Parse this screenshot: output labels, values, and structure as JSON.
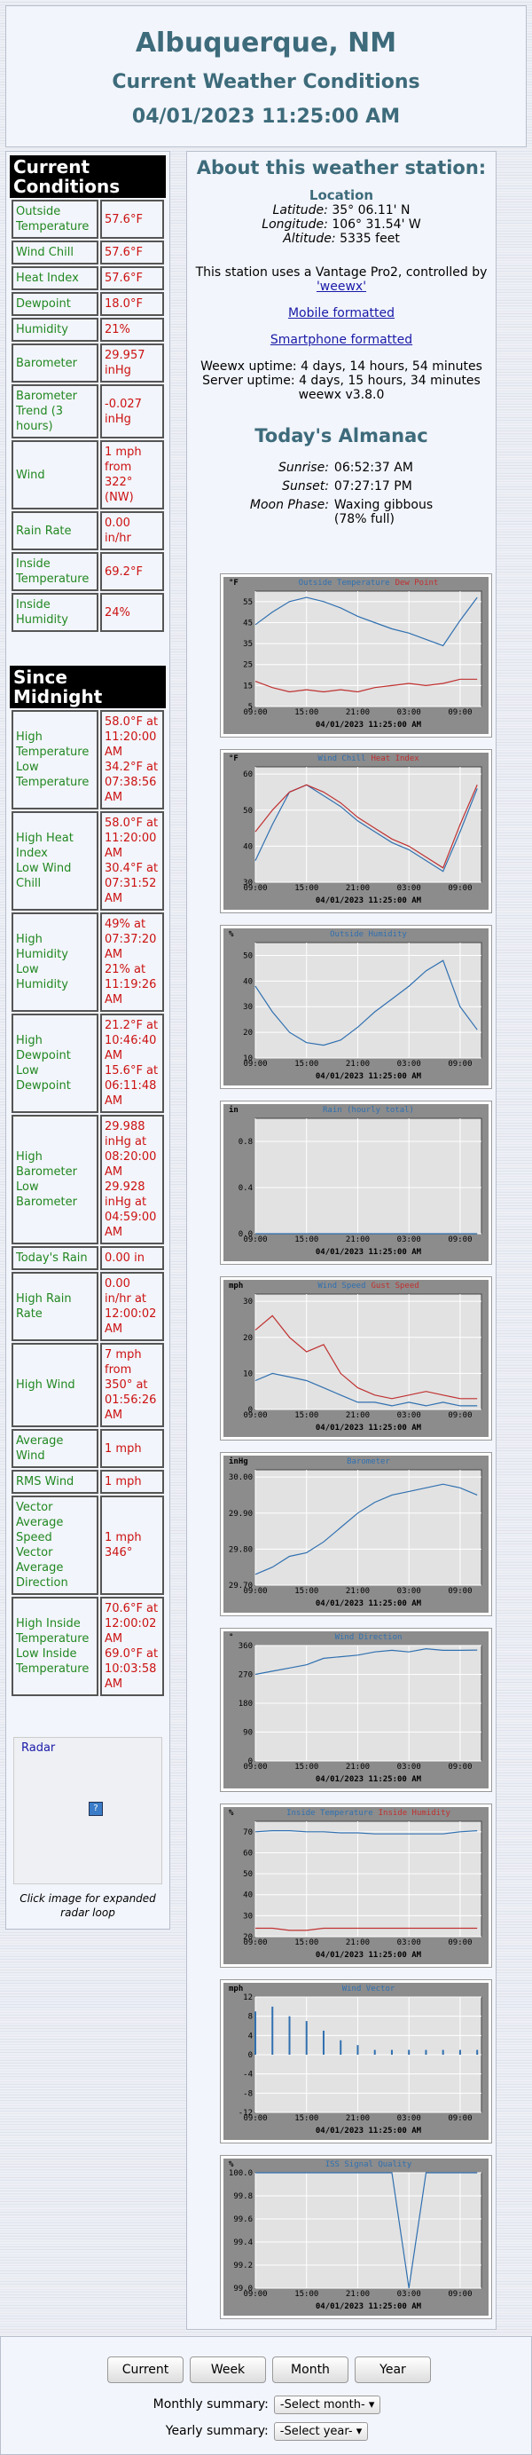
{
  "header": {
    "title": "Albuquerque, NM",
    "subtitle": "Current Weather Conditions",
    "date": "04/01/2023 11:25:00 AM"
  },
  "current_conditions": {
    "title": "Current Conditions",
    "rows": [
      [
        "Outside Temperature",
        "57.6°F"
      ],
      [
        "Wind Chill",
        "57.6°F"
      ],
      [
        "Heat Index",
        "57.6°F"
      ],
      [
        "Dewpoint",
        "18.0°F"
      ],
      [
        "Humidity",
        "21%"
      ],
      [
        "Barometer",
        "29.957 inHg"
      ],
      [
        "Barometer Trend (3 hours)",
        "-0.027 inHg"
      ],
      [
        "Wind",
        "1 mph from 322° (NW)"
      ],
      [
        "Rain Rate",
        "0.00 in/hr"
      ],
      [
        "Inside Temperature",
        "69.2°F"
      ],
      [
        "Inside Humidity",
        "24%"
      ]
    ]
  },
  "since_midnight": {
    "title": "Since Midnight",
    "rows": [
      [
        [
          "High Temperature",
          "Low Temperature"
        ],
        [
          "58.0°F at 11:20:00 AM",
          "34.2°F at 07:38:56 AM"
        ]
      ],
      [
        [
          "High Heat Index",
          "Low Wind Chill"
        ],
        [
          "58.0°F at 11:20:00 AM",
          "30.4°F at 07:31:52 AM"
        ]
      ],
      [
        [
          "High Humidity",
          "Low Humidity"
        ],
        [
          "49% at 07:37:20 AM",
          "21% at 11:19:26 AM"
        ]
      ],
      [
        [
          "High Dewpoint",
          "Low Dewpoint"
        ],
        [
          "21.2°F at 10:46:40 AM",
          "15.6°F at 06:11:48 AM"
        ]
      ],
      [
        [
          "High Barometer",
          "Low Barometer"
        ],
        [
          "29.988 inHg at 08:20:00 AM",
          "29.928 inHg at 04:59:00 AM"
        ]
      ],
      [
        "Today's Rain",
        "0.00 in"
      ],
      [
        "High Rain Rate",
        "0.00 in/hr at 12:00:02 AM"
      ],
      [
        "High Wind",
        "7 mph from 350° at 01:56:26 AM"
      ],
      [
        "Average Wind",
        "1 mph"
      ],
      [
        "RMS Wind",
        "1 mph"
      ],
      [
        [
          "Vector Average Speed",
          "Vector Average Direction"
        ],
        [
          "1 mph",
          "346°"
        ]
      ],
      [
        [
          "High Inside Temperature",
          "Low Inside Temperature"
        ],
        [
          "70.6°F at 12:00:02 AM",
          "69.0°F at 10:03:58 AM"
        ]
      ]
    ]
  },
  "radar": {
    "label": "Radar",
    "caption": "Click image for expanded radar loop"
  },
  "station": {
    "title": "About this weather station:",
    "location": "Location",
    "latitude_label": "Latitude:",
    "latitude": "35° 06.11' N",
    "longitude_label": "Longitude:",
    "longitude": "106° 31.54' W",
    "altitude_label": "Altitude:",
    "altitude": "5335 feet",
    "uses": "This station uses a Vantage Pro2, controlled by",
    "weewx_link": "'weewx'",
    "mobile": "Mobile formatted",
    "smartphone": "Smartphone formatted",
    "weewx_uptime": "Weewx uptime: 4 days, 14 hours, 54 minutes",
    "server_uptime": "Server uptime: 4 days, 15 hours, 34 minutes",
    "version": "weewx v3.8.0"
  },
  "almanac": {
    "title": "Today's Almanac",
    "sunrise_label": "Sunrise:",
    "sunrise": "06:52:37 AM",
    "sunset_label": "Sunset:",
    "sunset": "07:27:17 PM",
    "moon_label": "Moon Phase:",
    "moon": [
      "Waxing gibbous",
      "(78% full)"
    ]
  },
  "plots": {
    "timestamp": "04/01/2023 11:25:00 AM",
    "x": [
      0,
      2,
      4,
      6,
      8,
      10,
      12,
      14,
      16,
      18,
      20,
      22,
      24,
      26
    ],
    "xlim": [
      0,
      26.5
    ],
    "xticks": [
      {
        "value": 0,
        "label": "09:00"
      },
      {
        "value": 6,
        "label": "15:00"
      },
      {
        "value": 12,
        "label": "21:00"
      },
      {
        "value": 18,
        "label": "03:00"
      },
      {
        "value": 24,
        "label": "09:00"
      }
    ],
    "charts": [
      {
        "type": "line",
        "unit": "°F",
        "ylim": [
          5,
          60
        ],
        "yticks": [
          5,
          15,
          25,
          35,
          45,
          55
        ],
        "series": [
          {
            "name": "Outside Temperature",
            "color": "#3070b0",
            "values": [
              44,
              50,
              55,
              57,
              55,
              52,
              48,
              45,
              42,
              40,
              37,
              34,
              46,
              57
            ]
          },
          {
            "name": "Dew Point",
            "color": "#c03030",
            "values": [
              17,
              14,
              12,
              13,
              12,
              13,
              12,
              14,
              15,
              16,
              15,
              16,
              18,
              18
            ]
          }
        ]
      },
      {
        "type": "line",
        "unit": "°F",
        "ylim": [
          30,
          62
        ],
        "yticks": [
          30,
          40,
          50,
          60
        ],
        "series": [
          {
            "name": "Wind Chill",
            "color": "#3070b0",
            "values": [
              36,
              46,
              55,
              57,
              54,
              51,
              47,
              44,
              41,
              39,
              36,
              33,
              44,
              56
            ]
          },
          {
            "name": "Heat Index",
            "color": "#c03030",
            "values": [
              44,
              50,
              55,
              57,
              55,
              52,
              48,
              45,
              42,
              40,
              37,
              34,
              46,
              57
            ]
          }
        ]
      },
      {
        "type": "line",
        "unit": "%",
        "ylim": [
          10,
          55
        ],
        "yticks": [
          10,
          20,
          30,
          40,
          50
        ],
        "series": [
          {
            "name": "Outside Humidity",
            "color": "#3070b0",
            "values": [
              38,
              28,
              20,
              16,
              15,
              17,
              22,
              28,
              33,
              38,
              44,
              48,
              30,
              21
            ]
          }
        ]
      },
      {
        "type": "line",
        "unit": "in",
        "ylim": [
          0,
          1
        ],
        "yticks": [
          {
            "value": 0,
            "label": "0.0"
          },
          {
            "value": 0.4,
            "label": "0.4"
          },
          {
            "value": 0.8,
            "label": "0.8"
          }
        ],
        "series": [
          {
            "name": "Rain (hourly total)",
            "color": "#3070b0",
            "values": [
              0,
              0,
              0,
              0,
              0,
              0,
              0,
              0,
              0,
              0,
              0,
              0,
              0,
              0
            ]
          }
        ]
      },
      {
        "type": "line",
        "unit": "mph",
        "ylim": [
          0,
          32
        ],
        "yticks": [
          0,
          10,
          20,
          30
        ],
        "series": [
          {
            "name": "Wind Speed",
            "color": "#3070b0",
            "values": [
              8,
              10,
              9,
              8,
              6,
              4,
              2,
              2,
              1,
              2,
              1,
              2,
              1,
              1
            ]
          },
          {
            "name": "Gust Speed",
            "color": "#c03030",
            "values": [
              22,
              26,
              20,
              16,
              18,
              10,
              6,
              4,
              3,
              4,
              5,
              4,
              3,
              3
            ]
          }
        ]
      },
      {
        "type": "line",
        "unit": "inHg",
        "ylim": [
          29.7,
          30.02
        ],
        "yticks": [
          {
            "value": 29.7,
            "label": "29.70"
          },
          {
            "value": 29.8,
            "label": "29.80"
          },
          {
            "value": 29.9,
            "label": "29.90"
          },
          {
            "value": 30,
            "label": "30.00"
          }
        ],
        "series": [
          {
            "name": "Barometer",
            "color": "#3070b0",
            "values": [
              29.73,
              29.75,
              29.78,
              29.79,
              29.82,
              29.86,
              29.9,
              29.93,
              29.95,
              29.96,
              29.97,
              29.98,
              29.97,
              29.95
            ]
          }
        ]
      },
      {
        "type": "line",
        "unit": "°",
        "ylim": [
          0,
          360
        ],
        "yticks": [
          0,
          90,
          180,
          270,
          360
        ],
        "series": [
          {
            "name": "Wind Direction",
            "color": "#3070b0",
            "values": [
              270,
              280,
              290,
              300,
              320,
              325,
              330,
              340,
              345,
              340,
              350,
              345,
              345,
              346
            ]
          }
        ]
      },
      {
        "type": "line",
        "unit": "%",
        "ylim": [
          20,
          75
        ],
        "yticks": [
          20,
          30,
          40,
          50,
          60,
          70
        ],
        "series": [
          {
            "name": "Inside Temperature",
            "color": "#3070b0",
            "values": [
              70,
              70.5,
              70.5,
              70,
              70,
              69.5,
              69.5,
              69,
              69,
              69,
              69,
              69,
              70,
              70.5
            ]
          },
          {
            "name": "Inside Humidity",
            "color": "#c03030",
            "values": [
              24,
              24,
              23,
              23,
              24,
              24,
              24,
              24,
              24,
              24,
              24,
              24,
              24,
              24
            ]
          }
        ]
      },
      {
        "type": "vector",
        "unit": "mph",
        "ylim": [
          -12,
          12
        ],
        "yticks": [
          -12,
          -8,
          -4,
          0,
          4,
          8,
          12
        ],
        "series": [
          {
            "name": "Wind Vector",
            "color": "#3070b0",
            "values": [
              9,
              10,
              8,
              7,
              5,
              3,
              2,
              1,
              1,
              1,
              1,
              1,
              1,
              1
            ]
          }
        ]
      },
      {
        "type": "line",
        "unit": "%",
        "ylim": [
          99,
          100
        ],
        "yticks": [
          {
            "value": 99,
            "label": "99.0"
          },
          {
            "value": 99.2,
            "label": "99.2"
          },
          {
            "value": 99.4,
            "label": "99.4"
          },
          {
            "value": 99.6,
            "label": "99.6"
          },
          {
            "value": 99.8,
            "label": "99.8"
          },
          {
            "value": 100,
            "label": "100.0"
          }
        ],
        "series": [
          {
            "name": "ISS Signal Quality",
            "color": "#3070b0",
            "values": [
              100,
              100,
              100,
              100,
              100,
              100,
              100,
              100,
              100,
              99,
              100,
              100,
              100,
              100
            ]
          }
        ]
      }
    ]
  },
  "footer": {
    "buttons": [
      "Current",
      "Week",
      "Month",
      "Year"
    ],
    "monthly_label": "Monthly summary:",
    "monthly_select": "-Select month-",
    "yearly_label": "Yearly summary:",
    "yearly_select": "-Select year-"
  }
}
